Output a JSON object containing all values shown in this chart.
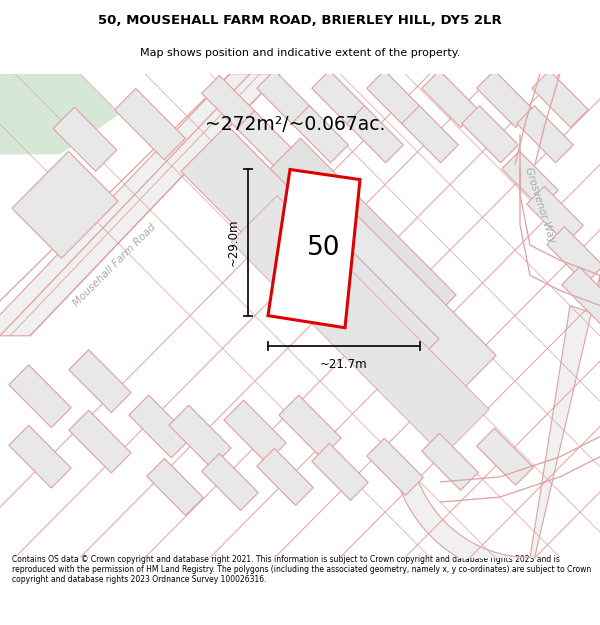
{
  "title_line1": "50, MOUSEHALL FARM ROAD, BRIERLEY HILL, DY5 2LR",
  "title_line2": "Map shows position and indicative extent of the property.",
  "footer_text": "Contains OS data © Crown copyright and database right 2021. This information is subject to Crown copyright and database rights 2023 and is reproduced with the permission of HM Land Registry. The polygons (including the associated geometry, namely x, y co-ordinates) are subject to Crown copyright and database rights 2023 Ordnance Survey 100026316.",
  "area_label": "~272m²/~0.067ac.",
  "number_label": "50",
  "dim_vertical": "~29.0m",
  "dim_horizontal": "~21.7m",
  "road_label_left": "Mousehall Farm Road",
  "road_label_right": "Grosvenor Way",
  "bg_color": "#ffffff",
  "map_bg": "#ffffff",
  "building_fill": "#e8e8e8",
  "building_edge": "#e0a0a0",
  "road_fill": "#f0f0f0",
  "red_poly_color": "#dd0000",
  "pink_line_color": "#e0a0a0",
  "green_patch_color": "#d5e8d5",
  "dim_line_color": "#111111",
  "road_text_color": "#aaaaaa",
  "property_fill": "#f0f0f0"
}
